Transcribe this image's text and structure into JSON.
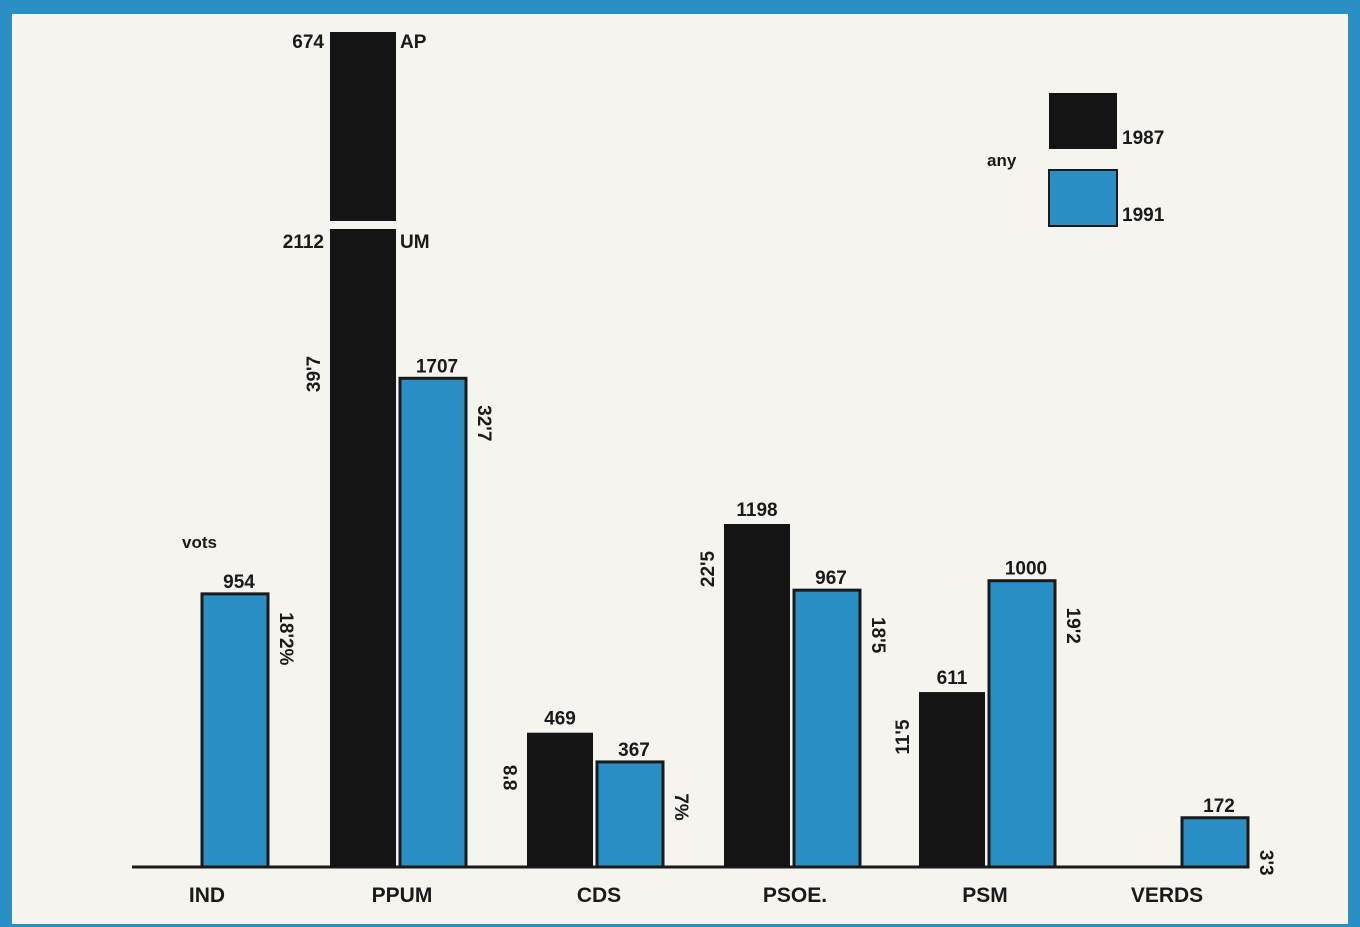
{
  "chart_data": {
    "type": "bar",
    "ylabel": "vots",
    "categories": [
      "IND",
      "PPUM",
      "CDS",
      "PSOE.",
      "PSM",
      "VERDS"
    ],
    "legend": {
      "title": "any",
      "position": "top-right"
    },
    "series": [
      {
        "name": "1987",
        "color": "#141414",
        "values": [
          null,
          2112,
          469,
          1198,
          611,
          null
        ]
      },
      {
        "name": "1991",
        "color": "#2a8fc4",
        "values": [
          954,
          1707,
          367,
          967,
          1000,
          172
        ]
      }
    ],
    "percentages": {
      "1987": [
        null,
        "39'7",
        "8'8",
        "22'5",
        "11'5",
        null
      ],
      "1991": [
        "18'2%",
        "32'7",
        "7%",
        "18'5",
        "19'2",
        "3'3"
      ]
    },
    "stacked_breakdown_1987_PPUM": [
      {
        "label": "AP",
        "value": 674
      },
      {
        "label": "UM",
        "value": 2112
      }
    ]
  }
}
